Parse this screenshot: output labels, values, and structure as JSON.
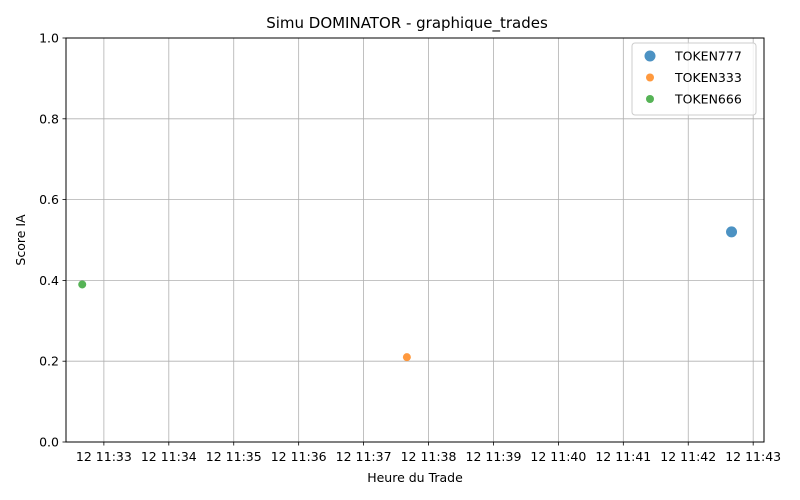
{
  "chart_data": {
    "type": "scatter",
    "title": "Simu DOMINATOR - graphique_trades",
    "xlabel": "Heure du Trade",
    "ylabel": "Score IA",
    "ylim": [
      0,
      1
    ],
    "yticks": [
      0.0,
      0.2,
      0.4,
      0.6,
      0.8,
      1.0
    ],
    "ytick_labels": [
      "0.0",
      "0.2",
      "0.4",
      "0.6",
      "0.8",
      "1.0"
    ],
    "x_type": "time",
    "xlim": [
      "11:32:25",
      "11:43:10"
    ],
    "xticks": [
      "11:33:00",
      "11:34:00",
      "11:35:00",
      "11:36:00",
      "11:37:00",
      "11:38:00",
      "11:39:00",
      "11:40:00",
      "11:41:00",
      "11:42:00",
      "11:43:00"
    ],
    "xtick_labels": [
      "12 11:33",
      "12 11:34",
      "12 11:35",
      "12 11:36",
      "12 11:37",
      "12 11:38",
      "12 11:39",
      "12 11:40",
      "12 11:41",
      "12 11:42",
      "12 11:43"
    ],
    "grid": true,
    "legend_position": "top-right",
    "series": [
      {
        "name": "TOKEN777",
        "color": "#1f77b4",
        "size": "large",
        "points": [
          {
            "x": "11:42:40",
            "y": 0.52
          }
        ]
      },
      {
        "name": "TOKEN333",
        "color": "#ff7f0e",
        "size": "small",
        "points": [
          {
            "x": "11:37:40",
            "y": 0.21
          }
        ]
      },
      {
        "name": "TOKEN666",
        "color": "#2ca02c",
        "size": "small",
        "points": [
          {
            "x": "11:32:40",
            "y": 0.39
          }
        ]
      }
    ]
  }
}
